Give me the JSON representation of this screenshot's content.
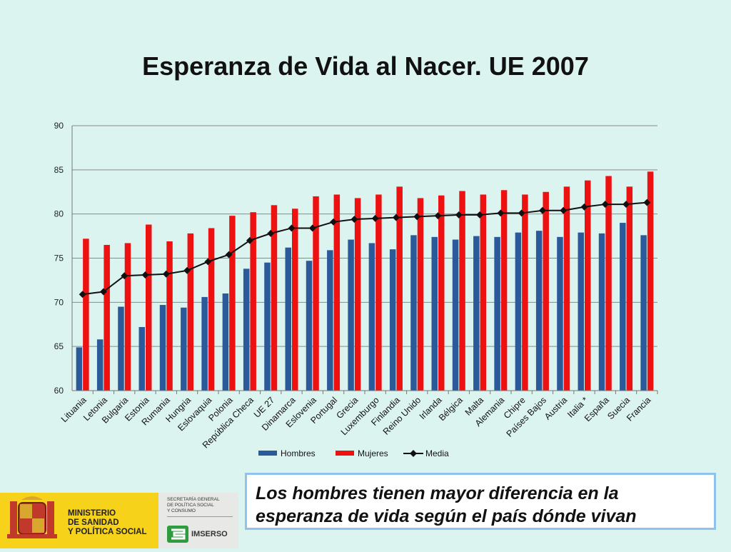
{
  "slide": {
    "title": "Esperanza de Vida al Nacer. UE 2007",
    "callout": "Los hombres  tienen  mayor diferencia en la esperanza de vida según el país dónde vivan"
  },
  "logos": {
    "ministry": "MINISTERIO\nDE SANIDAD\nY POLÍTICA SOCIAL",
    "secretaria": "SECRETARÍA GENERAL\nDE POLÍTICA SOCIAL\nY CONSUMO",
    "imserso": "IMSERSO"
  },
  "chart_data": {
    "type": "bar",
    "title": "Esperanza de Vida al Nacer. UE 2007",
    "categories": [
      "Lituania",
      "Letonia",
      "Bulgaria",
      "Estonia",
      "Rumania",
      "Hungria",
      "Eslovaquia",
      "Polonia",
      "República Checa",
      "UE 27",
      "Dinamarca",
      "Eslovenia",
      "Portugal",
      "Grecia",
      "Luxemburgo",
      "Finlandia",
      "Reino Unido",
      "Irlanda",
      "Bélgica",
      "Malta",
      "Alemania",
      "Chipre",
      "Países Bajos",
      "Austria",
      "Italia *",
      "España",
      "Suecia",
      "Francia"
    ],
    "series": [
      {
        "name": "Hombres",
        "type": "bar",
        "color": "#2a5a9a",
        "values": [
          64.9,
          65.8,
          69.5,
          67.2,
          69.7,
          69.4,
          70.6,
          71.0,
          73.8,
          74.5,
          76.2,
          74.7,
          75.9,
          77.1,
          76.7,
          76.0,
          77.6,
          77.4,
          77.1,
          77.5,
          77.4,
          77.9,
          78.1,
          77.4,
          77.9,
          77.8,
          79.0,
          77.6
        ]
      },
      {
        "name": "Mujeres",
        "type": "bar",
        "color": "#ee1111",
        "values": [
          77.2,
          76.5,
          76.7,
          78.8,
          76.9,
          77.8,
          78.4,
          79.8,
          80.2,
          81.0,
          80.6,
          82.0,
          82.2,
          81.8,
          82.2,
          83.1,
          81.8,
          82.1,
          82.6,
          82.2,
          82.7,
          82.2,
          82.5,
          83.1,
          83.8,
          84.3,
          83.1,
          84.8
        ]
      },
      {
        "name": "Media",
        "type": "line",
        "color": "#111111",
        "values": [
          70.9,
          71.2,
          73.0,
          73.1,
          73.2,
          73.6,
          74.6,
          75.4,
          77.0,
          77.8,
          78.4,
          78.4,
          79.1,
          79.4,
          79.5,
          79.6,
          79.7,
          79.8,
          79.9,
          79.9,
          80.1,
          80.1,
          80.4,
          80.4,
          80.8,
          81.1,
          81.1,
          81.3
        ]
      }
    ],
    "ylim": [
      60,
      90
    ],
    "yticks": [
      60,
      65,
      70,
      75,
      80,
      85,
      90
    ],
    "grid": true,
    "legend": "bottom"
  }
}
